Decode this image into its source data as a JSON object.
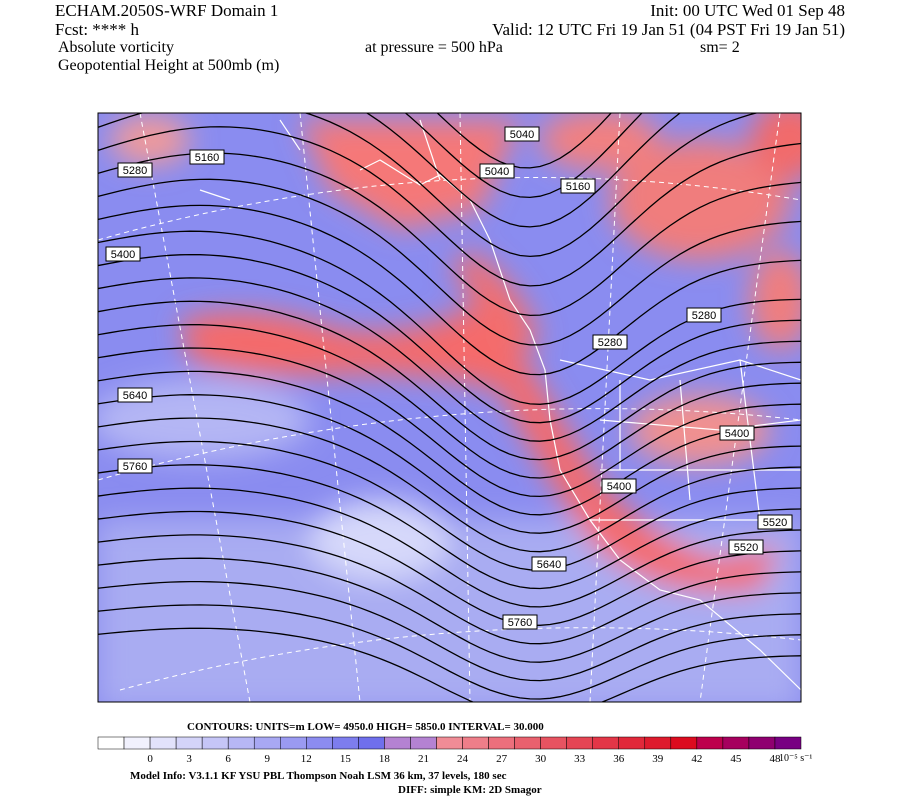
{
  "header": {
    "model": "ECHAM.2050S-WRF Domain 1",
    "init": "Init: 00 UTC Wed 01 Sep 48",
    "fcst": "Fcst: **** h",
    "valid": "Valid: 12 UTC Fri 19 Jan 51 (04 PST Fri 19 Jan 51)",
    "field": "Absolute vorticity",
    "pressure": "at pressure =  500 hPa",
    "smooth": "sm= 2",
    "overlay": "Geopotential Height at 500mb (m)"
  },
  "map": {
    "contour_labels": [
      5280,
      5160,
      5040,
      5040,
      5160,
      5400,
      5280,
      5280,
      5640,
      5400,
      5760,
      5400,
      5520,
      5520,
      5640,
      5760
    ]
  },
  "colorbar": {
    "ticks": [
      0,
      3,
      6,
      9,
      12,
      15,
      18,
      21,
      24,
      27,
      30,
      33,
      36,
      39,
      42,
      45,
      48
    ],
    "units": "10⁻⁵ s⁻¹"
  },
  "footer": {
    "contours": "CONTOURS:  UNITS=m  LOW=  4950.0     HIGH=  5850.0     INTERVAL=  30.000",
    "model_info": "Model Info: V3.1.1    KF     YSU PBL   Thompson    Noah LSM   36 km,   37 levels,   180 sec",
    "diff": "DIFF: simple KM: 2D Smagor"
  }
}
